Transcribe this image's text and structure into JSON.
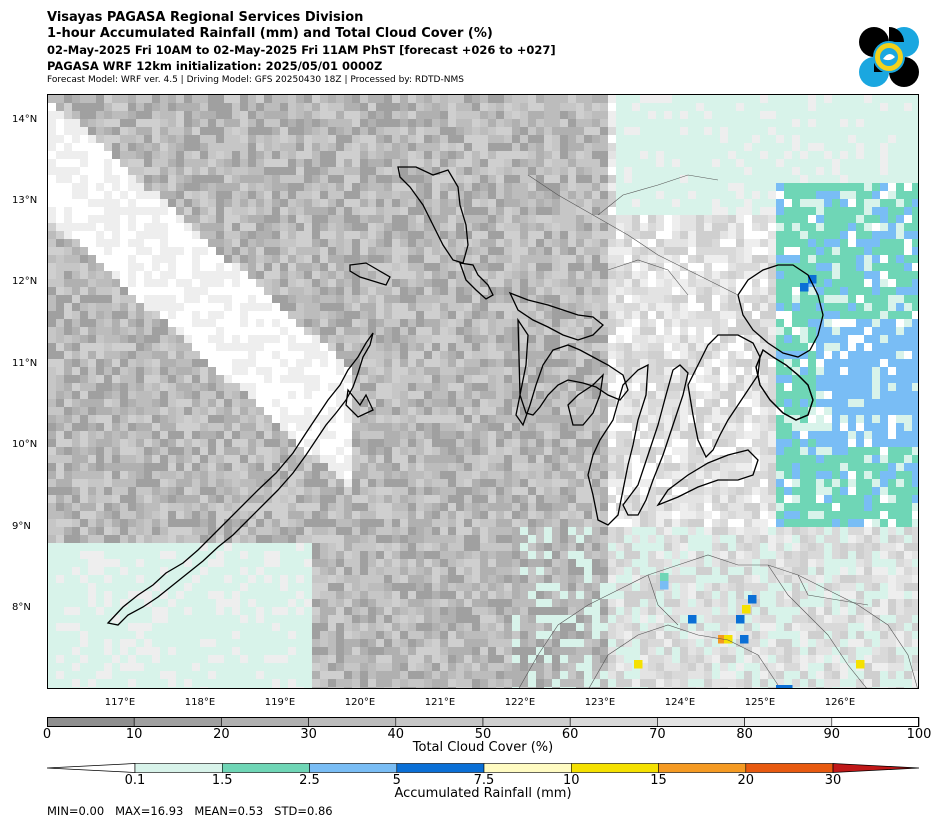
{
  "header": {
    "line1": "Visayas PAGASA Regional Services Division",
    "line2": "1-hour Accumulated Rainfall (mm) and Total Cloud Cover (%)",
    "line3": "02-May-2025 Fri 10AM to 02-May-2025 Fri 11AM PhST [forecast +026 to +027]",
    "line4": "PAGASA WRF 12km initialization: 2025/05/01 0000Z",
    "line5": "Forecast Model: WRF ver. 4.5 | Driving Model: GFS 20250430 18Z | Processed by: RDTD-NMS"
  },
  "map": {
    "lat_labels": [
      "14°N",
      "13°N",
      "12°N",
      "11°N",
      "10°N",
      "9°N",
      "8°N"
    ],
    "lon_labels": [
      "117°E",
      "118°E",
      "119°E",
      "120°E",
      "121°E",
      "122°E",
      "123°E",
      "124°E",
      "125°E",
      "126°E"
    ]
  },
  "cloud_colorbar": {
    "label": "Total Cloud Cover (%)",
    "ticks": [
      "0",
      "10",
      "20",
      "30",
      "40",
      "50",
      "60",
      "70",
      "80",
      "90",
      "100"
    ],
    "colors": [
      "#8f8f8f",
      "#a0a0a0",
      "#b0b0b0",
      "#bcbcbc",
      "#c6c6c6",
      "#cfcfcf",
      "#d9d9d9",
      "#e3e3e3",
      "#eeeeee",
      "#ffffff"
    ]
  },
  "rain_colorbar": {
    "label": "Accumulated Rainfall (mm)",
    "ticks": [
      "0.1",
      "1.5",
      "2.5",
      "5",
      "7.5",
      "10",
      "15",
      "20",
      "30"
    ],
    "colors": [
      "#d8f3ea",
      "#6fd6b6",
      "#79bdf5",
      "#0a6fd6",
      "#fffbc2",
      "#f5e100",
      "#f59a22",
      "#e85a10"
    ],
    "under_color": "#ffffff",
    "over_color": "#c01818"
  },
  "stats": {
    "text": "MIN=0.00   MAX=16.93   MEAN=0.53   STD=0.86"
  },
  "logo": {
    "icon": "pagasa-logo-icon",
    "colors": [
      "#000000",
      "#1aa7e0",
      "#f2d21b"
    ]
  }
}
